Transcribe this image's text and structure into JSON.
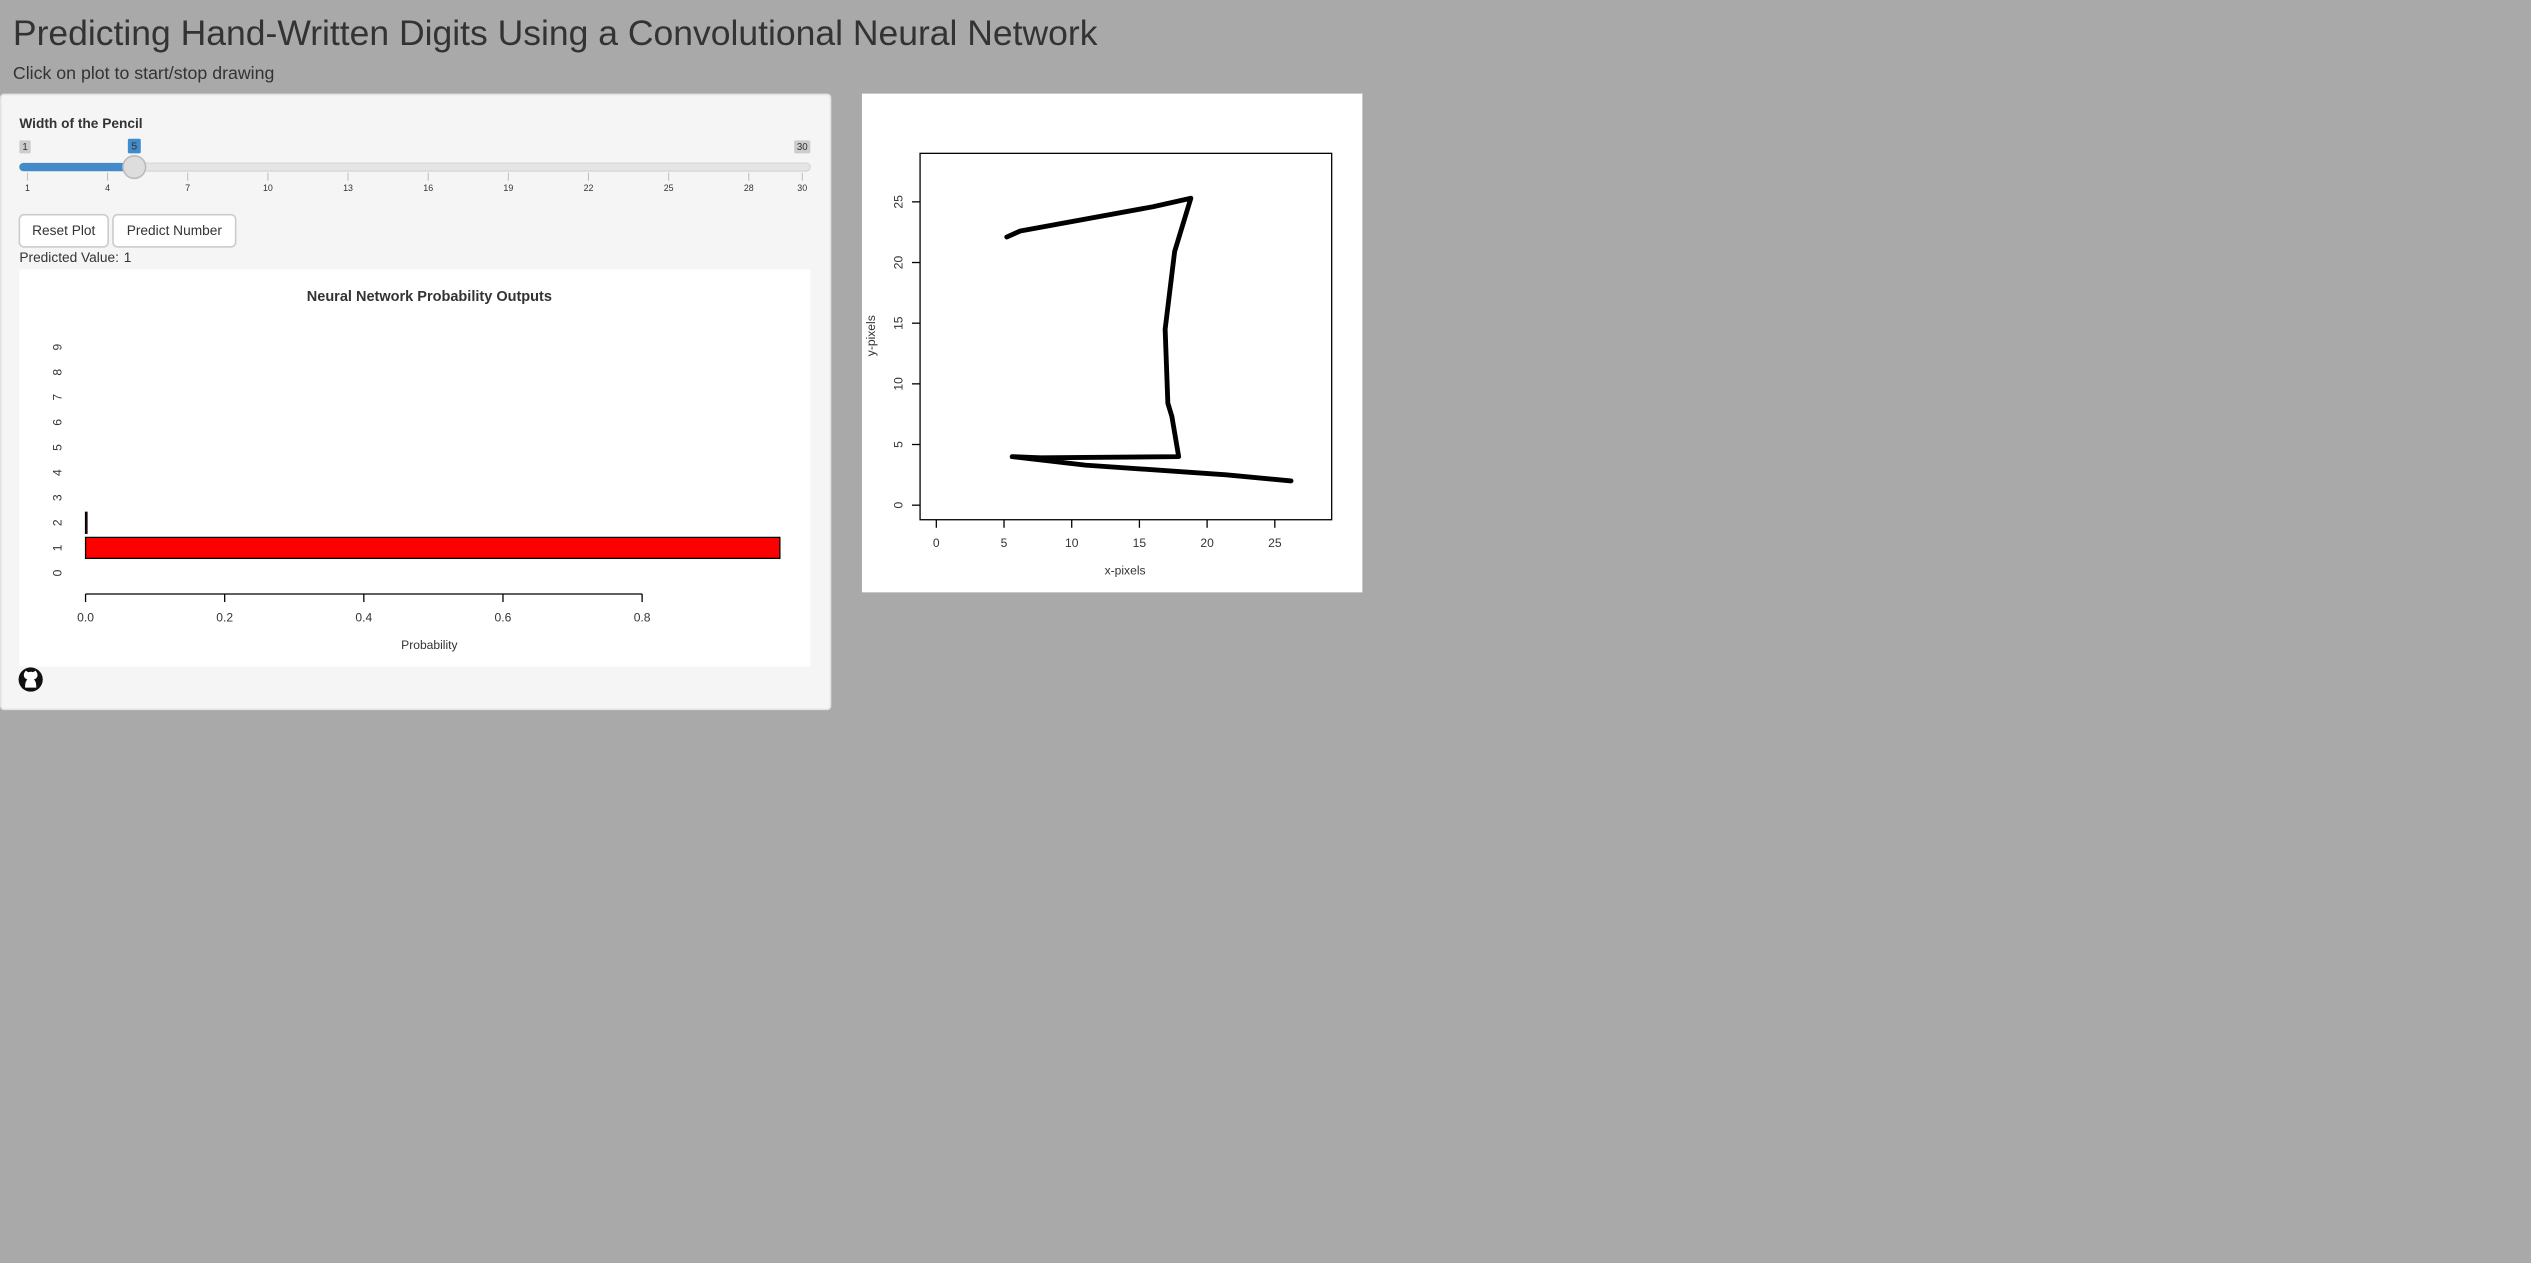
{
  "header": {
    "title": "Predicting Hand-Written Digits Using a Convolutional Neural Network",
    "subtitle": "Click on plot to start/stop drawing"
  },
  "slider": {
    "label": "Width of the Pencil",
    "min": 1,
    "max": 30,
    "value": 5,
    "ticks": [
      1,
      4,
      7,
      10,
      13,
      16,
      19,
      22,
      25,
      28,
      30
    ]
  },
  "buttons": [
    "Reset Plot",
    "Predict Number"
  ],
  "prediction": {
    "label": "Predicted Value:",
    "value": 1
  },
  "chart_data": [
    {
      "type": "bar",
      "orientation": "horizontal",
      "title": "Neural Network Probability Outputs",
      "xlabel": "Probability",
      "categories": [
        "0",
        "1",
        "2",
        "3",
        "4",
        "5",
        "6",
        "7",
        "8",
        "9"
      ],
      "values": [
        0,
        0.998,
        0.002,
        0,
        0,
        0,
        0,
        0,
        0,
        0
      ],
      "color": "#ff0000",
      "xlim": [
        0,
        1
      ],
      "xticks": [
        {
          "value": 0,
          "label": "0.0"
        },
        0.2,
        0.4,
        0.6,
        0.8
      ]
    },
    {
      "type": "line",
      "xlabel": "x-pixels",
      "ylabel": "y-pixels",
      "color": "#000000",
      "x": [
        5.2,
        6.2,
        16.0,
        18.8,
        17.6,
        16.9,
        17.1,
        17.4,
        17.9,
        7.7,
        5.6,
        11.0,
        21.4,
        26.2
      ],
      "values": [
        22.1,
        22.6,
        24.6,
        25.3,
        20.9,
        14.5,
        8.4,
        7.3,
        4.0,
        3.9,
        4.0,
        3.3,
        2.5,
        2.0
      ],
      "xlim": [
        -1.2,
        29.2
      ],
      "ylim": [
        -1.2,
        29
      ],
      "xticks": [
        0,
        5,
        10,
        15,
        20,
        25
      ],
      "yticks": [
        0,
        5,
        10,
        15,
        20,
        25
      ]
    }
  ]
}
